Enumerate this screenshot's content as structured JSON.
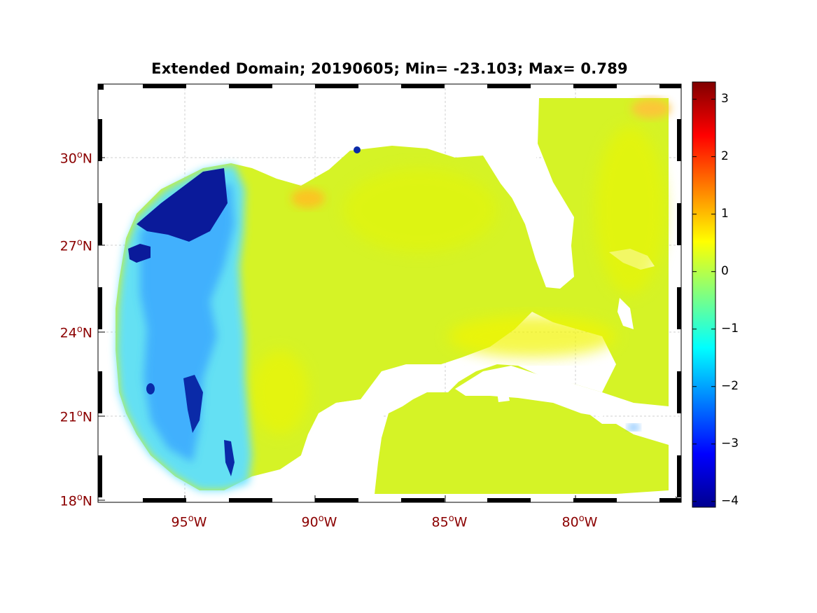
{
  "title": "Extended Domain; 20190605; Min= -23.103; Max= 0.789",
  "map": {
    "lat_labels": [
      {
        "deg": 30,
        "text": "30",
        "hem": "N"
      },
      {
        "deg": 27,
        "text": "27",
        "hem": "N"
      },
      {
        "deg": 24,
        "text": "24",
        "hem": "N"
      },
      {
        "deg": 21,
        "text": "21",
        "hem": "N"
      },
      {
        "deg": 18,
        "text": "18",
        "hem": "N"
      }
    ],
    "lon_labels": [
      {
        "deg": -95,
        "text": "95",
        "hem": "W"
      },
      {
        "deg": -90,
        "text": "90",
        "hem": "W"
      },
      {
        "deg": -85,
        "text": "85",
        "hem": "W"
      },
      {
        "deg": -80,
        "text": "80",
        "hem": "W"
      }
    ],
    "degree_mark": "o"
  },
  "colorbar": {
    "ticks": [
      "3",
      "2",
      "1",
      "0",
      "-1",
      "-2",
      "-3",
      "-4"
    ],
    "range": [
      -4.1,
      3.3
    ],
    "colormap": "jet"
  },
  "colors": {
    "ocean_base": "#d7f51f",
    "low_blue": "#1a5cff",
    "deep_blue": "#00108c",
    "cyan": "#30d5ff",
    "orange": "#ffc020",
    "label_red": "#8b0000"
  }
}
